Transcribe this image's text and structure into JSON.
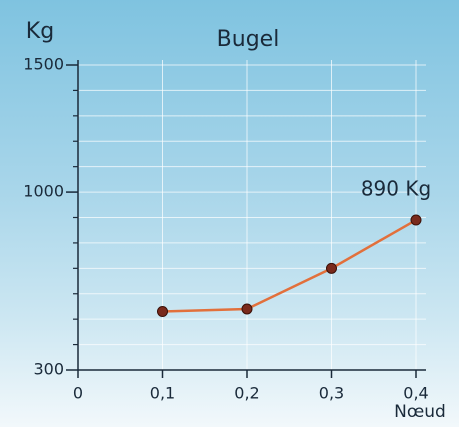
{
  "chart_data": {
    "type": "line",
    "title": "Bugel",
    "ylabel": "Kg",
    "xlabel": "Nœud",
    "x": [
      0.1,
      0.2,
      0.3,
      0.4
    ],
    "series": [
      {
        "name": "Bugel",
        "color": "#e2703c",
        "marker_color": "#7a2a1c",
        "values": [
          530,
          540,
          700,
          890
        ],
        "value_labels": [
          null,
          null,
          null,
          "890 Kg"
        ]
      }
    ],
    "xlim": [
      0,
      0.4
    ],
    "xticks": [
      0,
      {
        "value": 0.1,
        "label": "0,1"
      },
      {
        "value": 0.2,
        "label": "0,2"
      },
      {
        "value": 0.3,
        "label": "0,3"
      },
      {
        "value": 0.4,
        "label": "0,4"
      }
    ],
    "ylim": [
      300,
      1500
    ],
    "yticks": [
      300,
      1000,
      1500
    ],
    "minor_yticks": [
      400,
      500,
      600,
      700,
      800,
      900,
      1100,
      1200,
      1300,
      1400
    ],
    "grid": true
  }
}
